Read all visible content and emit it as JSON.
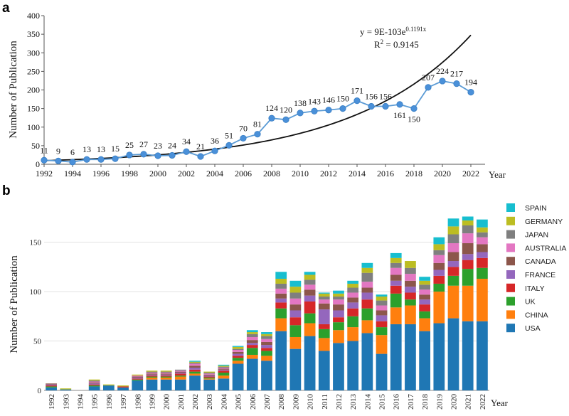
{
  "chart_data": [
    {
      "panel": "a",
      "type": "line",
      "xlabel": "Year",
      "ylabel": "Number of Publication",
      "xlim": [
        1992,
        2023
      ],
      "ylim": [
        0,
        400
      ],
      "x_ticks": [
        1992,
        1994,
        1996,
        1998,
        2000,
        2002,
        2004,
        2006,
        2008,
        2010,
        2012,
        2014,
        2016,
        2018,
        2020,
        2022
      ],
      "y_ticks": [
        0,
        50,
        100,
        150,
        200,
        250,
        300,
        350,
        400
      ],
      "x": [
        1992,
        1993,
        1994,
        1995,
        1996,
        1997,
        1998,
        1999,
        2000,
        2001,
        2002,
        2003,
        2004,
        2005,
        2006,
        2007,
        2008,
        2009,
        2010,
        2011,
        2012,
        2013,
        2014,
        2015,
        2016,
        2017,
        2018,
        2019,
        2020,
        2021,
        2022
      ],
      "values": [
        11,
        9,
        6,
        13,
        13,
        15,
        25,
        27,
        23,
        24,
        34,
        21,
        36,
        51,
        70,
        81,
        124,
        120,
        138,
        143,
        146,
        150,
        171,
        156,
        156,
        161,
        150,
        207,
        224,
        217,
        194
      ],
      "label_below": [
        2017,
        2018
      ],
      "series_color": "#5b9bd5",
      "marker_color": "#4a90d9",
      "fit": {
        "label_main": "y = 9E-103e",
        "label_exp": "0.1191x",
        "r2_main": "R",
        "r2_sup": "2",
        "r2_value": " = 0.9145",
        "a": 9e-103,
        "b": 0.1191,
        "x_from": 1992,
        "x_to": 2022,
        "color": "#111111"
      }
    },
    {
      "panel": "b",
      "type": "bar",
      "stacked": true,
      "xlabel": "Year",
      "ylabel": "Number of Publication",
      "ylim": [
        0,
        185
      ],
      "y_ticks": [
        0,
        50,
        100,
        150
      ],
      "categories": [
        "1992",
        "1993",
        "1994",
        "1995",
        "1996",
        "1997",
        "1998",
        "1999",
        "2000",
        "2001",
        "2002",
        "2003",
        "2004",
        "2005",
        "2006",
        "2007",
        "2008",
        "2009",
        "2010",
        "2011",
        "2012",
        "2013",
        "2014",
        "2015",
        "2016",
        "2017",
        "2018",
        "2019",
        "2020",
        "2021",
        "2022"
      ],
      "series": [
        {
          "name": "USA",
          "color": "#1f77b4",
          "values": [
            3,
            1,
            0,
            4,
            5,
            3,
            10,
            11,
            11,
            11,
            15,
            11,
            12,
            27,
            32,
            30,
            60,
            42,
            55,
            40,
            48,
            50,
            58,
            37,
            67,
            67,
            60,
            68,
            73,
            70,
            70
          ]
        },
        {
          "name": "CHINA",
          "color": "#ff7f0e",
          "values": [
            0,
            0,
            0,
            0,
            0,
            0,
            0,
            2,
            2,
            3,
            2,
            1,
            3,
            3,
            4,
            5,
            13,
            12,
            13,
            13,
            13,
            14,
            13,
            19,
            17,
            19,
            13,
            32,
            33,
            36,
            43
          ]
        },
        {
          "name": "UK",
          "color": "#2ca02c",
          "values": [
            1,
            0,
            0,
            1,
            0,
            0,
            1,
            1,
            1,
            1,
            2,
            1,
            3,
            3,
            7,
            5,
            10,
            12,
            10,
            9,
            8,
            11,
            12,
            8,
            14,
            6,
            7,
            8,
            10,
            17,
            11
          ]
        },
        {
          "name": "ITALY",
          "color": "#d62728",
          "values": [
            1,
            0,
            0,
            1,
            0,
            1,
            1,
            1,
            1,
            2,
            2,
            1,
            2,
            2,
            3,
            3,
            6,
            8,
            12,
            5,
            5,
            8,
            9,
            6,
            8,
            7,
            7,
            8,
            9,
            9,
            10
          ]
        },
        {
          "name": "FRANCE",
          "color": "#9467bd",
          "values": [
            1,
            0,
            0,
            1,
            0,
            0,
            1,
            1,
            1,
            1,
            2,
            1,
            1,
            2,
            2,
            3,
            4,
            7,
            6,
            15,
            7,
            6,
            7,
            6,
            5,
            6,
            5,
            6,
            6,
            6,
            6
          ]
        },
        {
          "name": "CANADA",
          "color": "#8c564b",
          "values": [
            1,
            0,
            0,
            1,
            0,
            0,
            1,
            1,
            1,
            1,
            2,
            1,
            1,
            2,
            3,
            3,
            5,
            6,
            6,
            6,
            6,
            5,
            5,
            5,
            6,
            6,
            5,
            7,
            9,
            11,
            8
          ]
        },
        {
          "name": "AUSTRALIA",
          "color": "#e377c2",
          "values": [
            0,
            0,
            0,
            1,
            0,
            0,
            1,
            1,
            1,
            1,
            2,
            1,
            1,
            2,
            3,
            3,
            5,
            6,
            5,
            4,
            5,
            5,
            6,
            5,
            7,
            7,
            5,
            8,
            9,
            10,
            7
          ]
        },
        {
          "name": "JAPAN",
          "color": "#7f7f7f",
          "values": [
            0,
            0,
            0,
            1,
            0,
            0,
            0,
            1,
            1,
            1,
            1,
            1,
            1,
            1,
            3,
            3,
            5,
            6,
            5,
            3,
            3,
            5,
            9,
            5,
            5,
            6,
            5,
            5,
            9,
            8,
            5
          ]
        },
        {
          "name": "GERMANY",
          "color": "#bcbd22",
          "values": [
            0,
            1,
            0,
            1,
            1,
            1,
            1,
            1,
            1,
            0,
            1,
            1,
            1,
            2,
            2,
            2,
            5,
            6,
            5,
            3,
            3,
            4,
            5,
            4,
            5,
            7,
            4,
            6,
            8,
            5,
            5
          ]
        },
        {
          "name": "SPAIN",
          "color": "#17becf",
          "values": [
            0,
            0,
            0,
            0,
            0,
            0,
            0,
            0,
            0,
            0,
            1,
            0,
            1,
            1,
            2,
            2,
            7,
            6,
            3,
            1,
            3,
            3,
            5,
            2,
            5,
            0,
            4,
            7,
            8,
            4,
            8
          ]
        }
      ]
    }
  ]
}
